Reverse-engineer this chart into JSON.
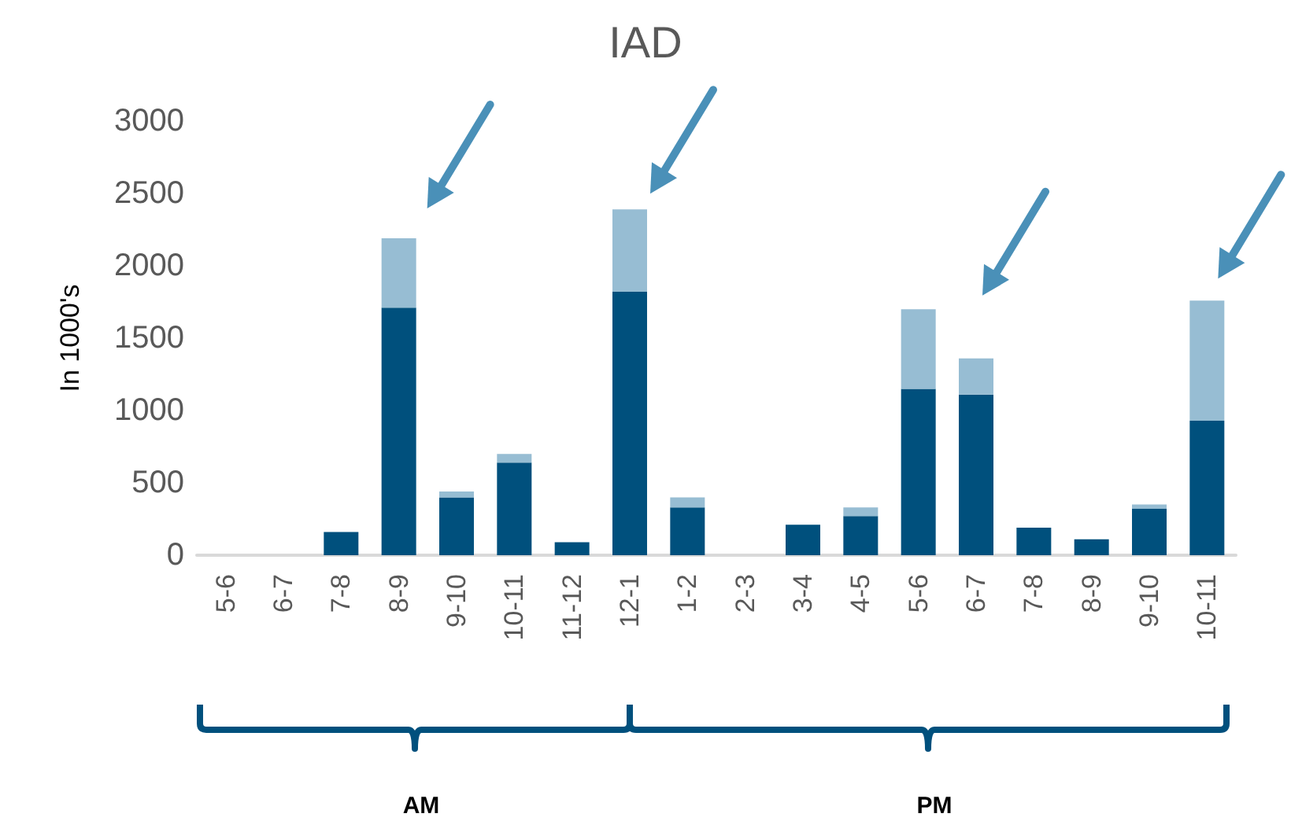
{
  "chart_data": {
    "type": "bar",
    "title": "IAD",
    "ylabel": "In 1000's",
    "categories": [
      "5-6",
      "6-7",
      "7-8",
      "8-9",
      "9-10",
      "10-11",
      "11-12",
      "12-1",
      "1-2",
      "2-3",
      "3-4",
      "4-5",
      "5-6",
      "6-7",
      "7-8",
      "8-9",
      "9-10",
      "10-11"
    ],
    "series": [
      {
        "color": "#00507d",
        "values": [
          0,
          0,
          160,
          1710,
          400,
          640,
          90,
          1820,
          330,
          0,
          210,
          270,
          1150,
          1110,
          190,
          110,
          320,
          930
        ]
      },
      {
        "color": "#97bdd3",
        "values": [
          0,
          0,
          0,
          480,
          40,
          60,
          0,
          570,
          70,
          0,
          0,
          60,
          550,
          250,
          0,
          0,
          30,
          830
        ]
      }
    ],
    "stacked": true,
    "ylim": [
      0,
      3000
    ],
    "yticks": [
      0,
      500,
      1000,
      1500,
      2000,
      2500,
      3000
    ],
    "grid": false,
    "annotations": [
      "AM",
      "PM"
    ]
  }
}
